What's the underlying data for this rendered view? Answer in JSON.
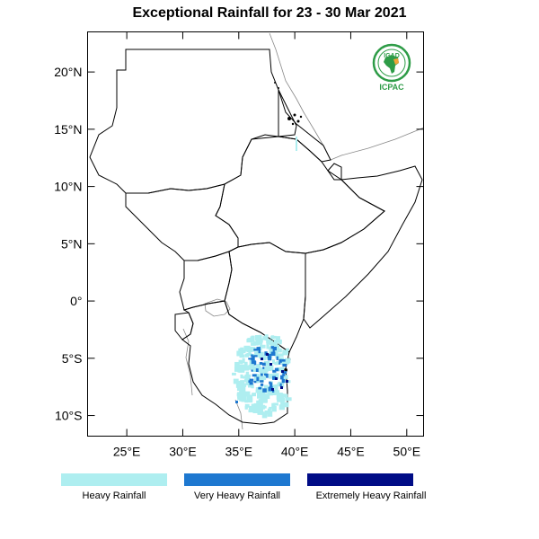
{
  "title": "Exceptional Rainfall for 23 - 30 Mar 2021",
  "map": {
    "lon_range": [
      21.5,
      51.5
    ],
    "lat_range": [
      -11.8,
      23.5
    ],
    "lat_ticks": [
      {
        "value": 20,
        "label": "20°N"
      },
      {
        "value": 15,
        "label": "15°N"
      },
      {
        "value": 10,
        "label": "10°N"
      },
      {
        "value": 5,
        "label": "5°N"
      },
      {
        "value": 0,
        "label": "0°"
      },
      {
        "value": -5,
        "label": "5°S"
      },
      {
        "value": -10,
        "label": "10°S"
      }
    ],
    "lon_ticks": [
      {
        "value": 25,
        "label": "25°E"
      },
      {
        "value": 30,
        "label": "30°E"
      },
      {
        "value": 35,
        "label": "35°E"
      },
      {
        "value": 40,
        "label": "40°E"
      },
      {
        "value": 45,
        "label": "45°E"
      },
      {
        "value": 50,
        "label": "50°E"
      }
    ]
  },
  "logo": {
    "top_text": "IGAD",
    "bottom_text": "ICPAC",
    "color": "#2e9c47"
  },
  "legend": [
    {
      "label": "Heavy Rainfall",
      "color": "#aeeef0"
    },
    {
      "label": "Very Heavy Rainfall",
      "color": "#1e78d0"
    },
    {
      "label": "Extremely Heavy Rainfall",
      "color": "#000c86"
    }
  ],
  "colors": {
    "heavy": "#aeeef0",
    "very_heavy": "#1e78d0",
    "extreme": "#000c86"
  }
}
